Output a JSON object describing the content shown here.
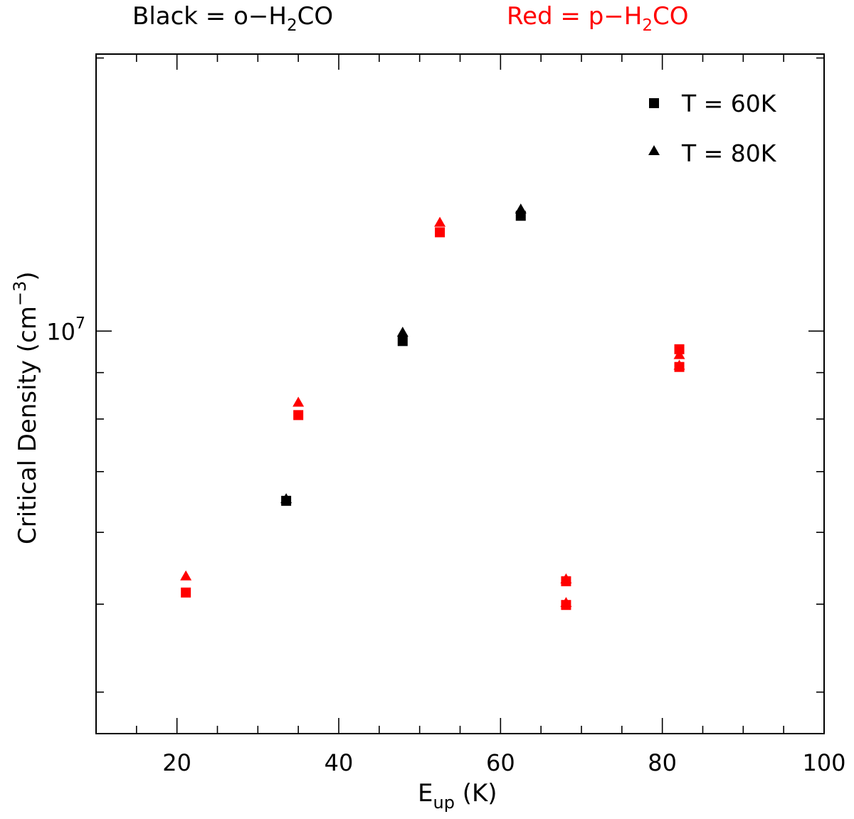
{
  "header": {
    "black_note": {
      "prefix": "Black = o−H",
      "sub": "2",
      "suffix": "CO",
      "color": "#000000"
    },
    "red_note": {
      "prefix": "Red = p−H",
      "sub": "2",
      "suffix": "CO",
      "color": "#ff0000"
    }
  },
  "legend": {
    "square_label": "T = 60K",
    "triangle_label": "T = 80K"
  },
  "chart_data": {
    "type": "scatter",
    "xlabel": {
      "base": "E",
      "sub": "up",
      "rest": " (K)"
    },
    "ylabel": {
      "text": "Critical Density (cm",
      "sup": "−3",
      "close": ")"
    },
    "xlim": [
      10,
      100
    ],
    "ylim": [
      3600000,
      20200000
    ],
    "yscale": "log",
    "x_ticks": [
      20,
      40,
      60,
      80,
      100
    ],
    "y_tick_label": {
      "value": 10000000,
      "base": "10",
      "exp": "7"
    },
    "grid": false,
    "legend_position": "top-right",
    "colors": {
      "ortho": "#000000",
      "para": "#ff0000"
    },
    "series": [
      {
        "name": "T = 60K",
        "marker": "square",
        "points": [
          {
            "x": 21.1,
            "y": 5150000,
            "species": "para"
          },
          {
            "x": 33.5,
            "y": 6500000,
            "species": "ortho"
          },
          {
            "x": 35.0,
            "y": 8080000,
            "species": "para"
          },
          {
            "x": 47.9,
            "y": 9750000,
            "species": "ortho"
          },
          {
            "x": 52.5,
            "y": 12850000,
            "species": "para"
          },
          {
            "x": 62.5,
            "y": 13400000,
            "species": "ortho"
          },
          {
            "x": 68.1,
            "y": 4990000,
            "species": "para"
          },
          {
            "x": 68.1,
            "y": 5300000,
            "species": "para"
          },
          {
            "x": 82.1,
            "y": 9130000,
            "species": "para"
          },
          {
            "x": 82.1,
            "y": 9550000,
            "species": "para"
          }
        ]
      },
      {
        "name": "T = 80K",
        "marker": "triangle",
        "points": [
          {
            "x": 21.1,
            "y": 5360000,
            "species": "para"
          },
          {
            "x": 33.5,
            "y": 6520000,
            "species": "ortho"
          },
          {
            "x": 35.0,
            "y": 8330000,
            "species": "para"
          },
          {
            "x": 47.9,
            "y": 9950000,
            "species": "ortho"
          },
          {
            "x": 52.5,
            "y": 13150000,
            "species": "para"
          },
          {
            "x": 62.5,
            "y": 13600000,
            "species": "ortho"
          },
          {
            "x": 68.1,
            "y": 5010000,
            "species": "para"
          },
          {
            "x": 68.1,
            "y": 5320000,
            "species": "para"
          },
          {
            "x": 82.1,
            "y": 9150000,
            "species": "para"
          },
          {
            "x": 82.1,
            "y": 9400000,
            "species": "para"
          }
        ]
      }
    ]
  }
}
